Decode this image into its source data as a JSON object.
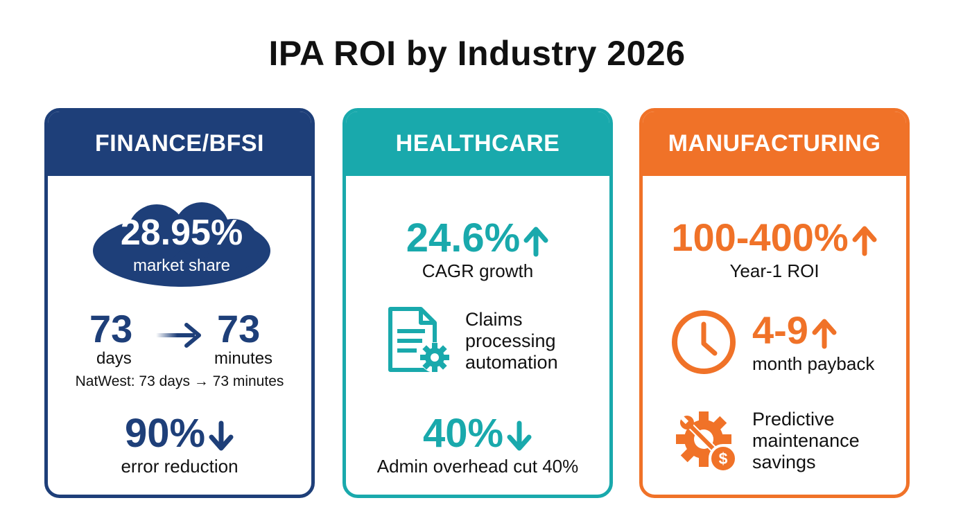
{
  "title": "IPA ROI by Industry 2026",
  "colors": {
    "finance": "#1e3f79",
    "healthcare": "#19a9ac",
    "manufacturing": "#f07228"
  },
  "finance": {
    "header": "FINANCE/BFSI",
    "market_share_value": "28.95%",
    "market_share_label": "market share",
    "from_value": "73",
    "from_label": "days",
    "to_value": "73",
    "to_label": "minutes",
    "natwest_note": "NatWest: 73 days → 73 minutes",
    "error_value": "90%",
    "error_label": "error reduction"
  },
  "healthcare": {
    "header": "HEALTHCARE",
    "cagr_value": "24.6%",
    "cagr_label": "CAGR growth",
    "claims_lines": [
      "Claims",
      "processing",
      "automation"
    ],
    "admin_value": "40%",
    "admin_label": "Admin overhead cut 40%"
  },
  "manufacturing": {
    "header": "MANUFACTURING",
    "roi_value": "100-400%",
    "roi_label": "Year-1 ROI",
    "payback_value": "4-9",
    "payback_label": "month payback",
    "maintenance_lines": [
      "Predictive",
      "maintenance",
      "savings"
    ]
  },
  "icons": {
    "cloud": "cloud-shape",
    "right_arrow": "arrow-right-icon",
    "up_arrow": "arrow-up-icon",
    "down_arrow": "arrow-down-icon",
    "claims": "document-gear-icon",
    "clock": "clock-icon",
    "maintenance": "wrench-gear-dollar-icon"
  }
}
